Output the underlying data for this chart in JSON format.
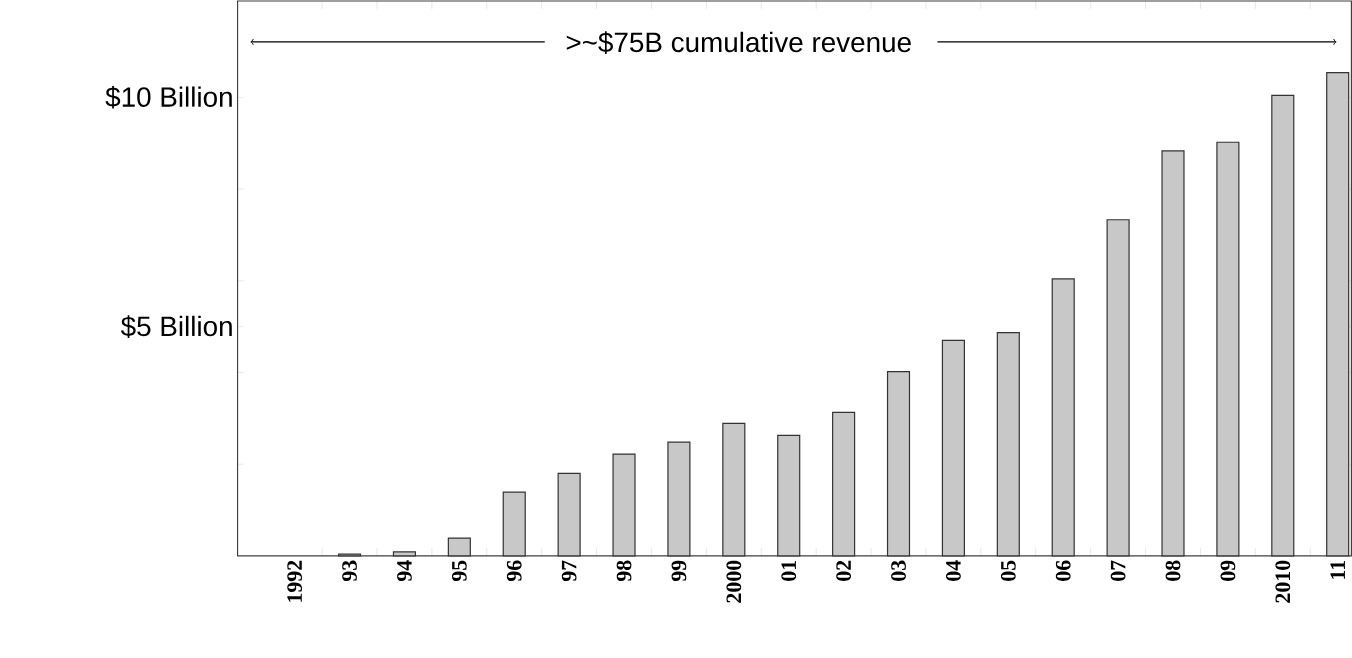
{
  "chart_data": {
    "type": "bar",
    "categories": [
      "1992",
      "93",
      "94",
      "95",
      "96",
      "97",
      "98",
      "99",
      "2000",
      "01",
      "02",
      "03",
      "04",
      "05",
      "06",
      "07",
      "08",
      "09",
      "2010",
      "11"
    ],
    "values": [
      null,
      0.04,
      0.09,
      0.39,
      1.39,
      1.8,
      2.22,
      2.48,
      2.89,
      2.63,
      3.13,
      4.02,
      4.7,
      4.87,
      6.04,
      7.33,
      8.83,
      9.02,
      10.04,
      10.54
    ],
    "color": "#c8c8c8",
    "ylim": [
      0,
      12.1
    ],
    "yticks": [
      {
        "value": 2,
        "label": null
      },
      {
        "value": 4,
        "label": null
      },
      {
        "value": 5,
        "label": "$5 Billion"
      },
      {
        "value": 6,
        "label": null
      },
      {
        "value": 8,
        "label": null
      },
      {
        "value": 10,
        "label": "$10 Billion"
      }
    ],
    "annotations": [
      ">~$75B cumulative revenue"
    ],
    "grid": false
  }
}
